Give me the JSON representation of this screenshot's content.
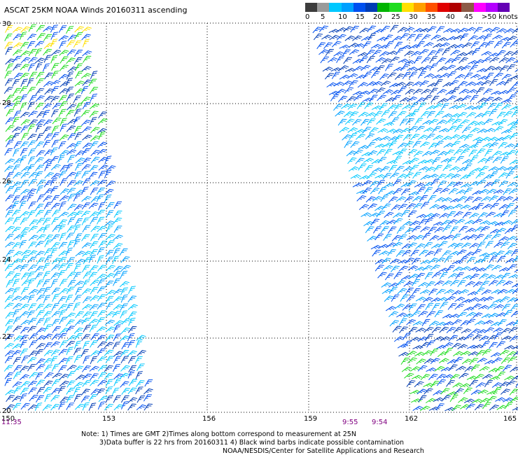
{
  "title": "ASCAT 25KM NOAA Winds 20160311 ascending",
  "legend": {
    "labels": [
      "0",
      "5",
      "10",
      "15",
      "20",
      "25",
      "30",
      "35",
      "40",
      "45",
      ">50 knots"
    ],
    "colors": [
      "#3c3c3c",
      "#9a9a9a",
      "#00c8ff",
      "#00a0ff",
      "#0050f0",
      "#003cb4",
      "#00b400",
      "#1edc1e",
      "#ffe000",
      "#ffa000",
      "#ff5000",
      "#e00000",
      "#b00000",
      "#8c5a46",
      "#ff00ff",
      "#b400ff",
      "#6400b4"
    ]
  },
  "axes": {
    "lat_labels": [
      "30",
      "28",
      "26",
      "24",
      "22",
      "20"
    ],
    "lon_labels": [
      "150",
      "153",
      "156",
      "159",
      "162",
      "165"
    ]
  },
  "pass_times": [
    "11:35",
    "9:55",
    "9:54"
  ],
  "notes": {
    "line1": "Note: 1) Times are GMT 2)Times along bottom correspond to measurement at 25N",
    "line2": "3)Data buffer is 22 hrs from 20160311 4) Black wind barbs indicate possible contamination",
    "line3": "NOAA/NESDIS/Center for Satellite Applications and Research"
  }
}
